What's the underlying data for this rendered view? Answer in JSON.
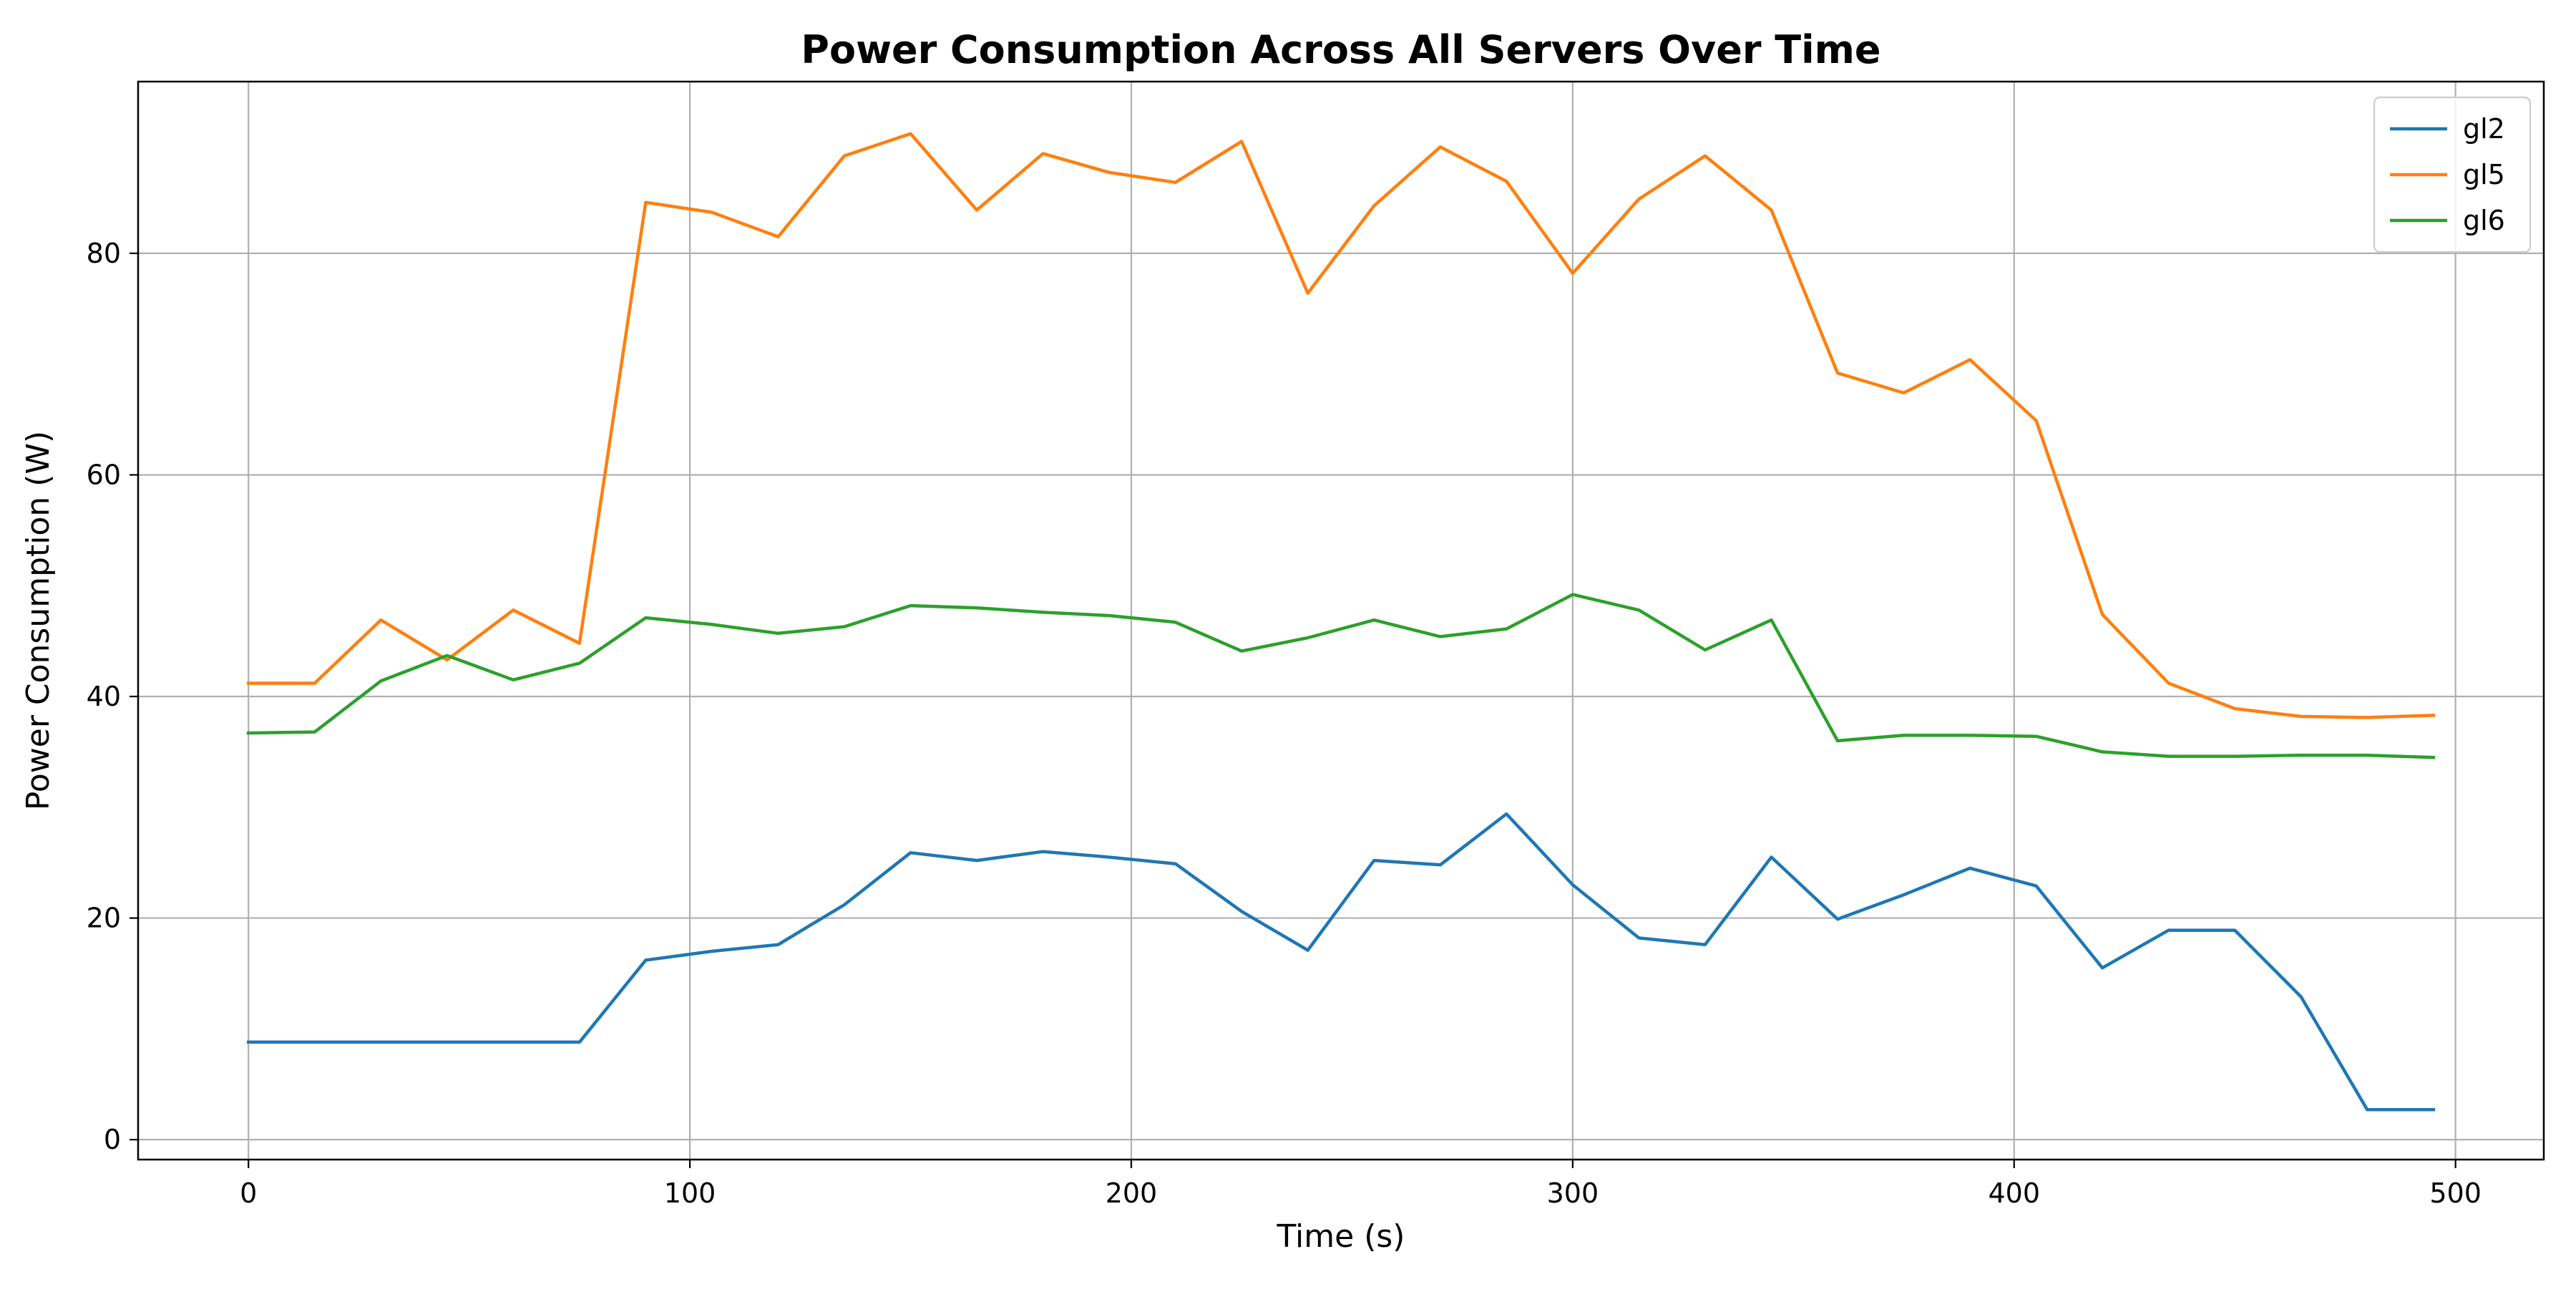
{
  "chart_data": {
    "type": "line",
    "title": "Power Consumption Across All Servers Over Time",
    "xlabel": "Time (s)",
    "ylabel": "Power Consumption (W)",
    "xlim": [
      -25,
      520
    ],
    "ylim": [
      -1.8,
      95.5
    ],
    "xticks": [
      0,
      100,
      200,
      300,
      400,
      500
    ],
    "yticks": [
      0,
      20,
      40,
      60,
      80
    ],
    "grid": true,
    "legend_position": "top-right",
    "x": [
      0,
      15,
      30,
      45,
      60,
      75,
      90,
      105,
      120,
      135,
      150,
      165,
      180,
      195,
      210,
      225,
      240,
      255,
      270,
      285,
      300,
      315,
      330,
      345,
      360,
      375,
      390,
      405,
      420,
      435,
      450,
      465,
      480,
      495
    ],
    "series": [
      {
        "name": "gl2",
        "color": "#1f77b4",
        "values": [
          8.8,
          8.8,
          8.8,
          8.8,
          8.8,
          8.8,
          16.2,
          17.0,
          17.6,
          21.2,
          25.9,
          25.2,
          26.0,
          25.5,
          24.9,
          20.6,
          17.1,
          25.2,
          24.8,
          29.4,
          23.0,
          18.2,
          17.6,
          25.5,
          19.9,
          22.1,
          24.5,
          22.9,
          15.5,
          18.9,
          18.9,
          12.9,
          2.7,
          2.7
        ]
      },
      {
        "name": "gl5",
        "color": "#ff7f0e",
        "values": [
          41.2,
          41.2,
          46.9,
          43.3,
          47.8,
          44.8,
          84.6,
          83.7,
          81.5,
          88.8,
          90.8,
          83.9,
          89.0,
          87.3,
          86.4,
          90.1,
          76.4,
          84.3,
          89.6,
          86.5,
          78.2,
          84.9,
          88.8,
          83.9,
          69.2,
          67.4,
          70.4,
          64.9,
          47.4,
          41.2,
          38.9,
          38.2,
          38.1,
          38.3
        ]
      },
      {
        "name": "gl6",
        "color": "#2ca02c",
        "values": [
          36.7,
          36.8,
          41.4,
          43.7,
          41.5,
          43.0,
          47.1,
          46.5,
          45.7,
          46.3,
          48.2,
          48.0,
          47.6,
          47.3,
          46.7,
          44.1,
          45.3,
          46.9,
          45.4,
          46.1,
          49.2,
          47.8,
          44.2,
          46.9,
          36.0,
          36.5,
          36.5,
          36.4,
          35.0,
          34.6,
          34.6,
          34.7,
          34.7,
          34.5
        ]
      }
    ]
  }
}
